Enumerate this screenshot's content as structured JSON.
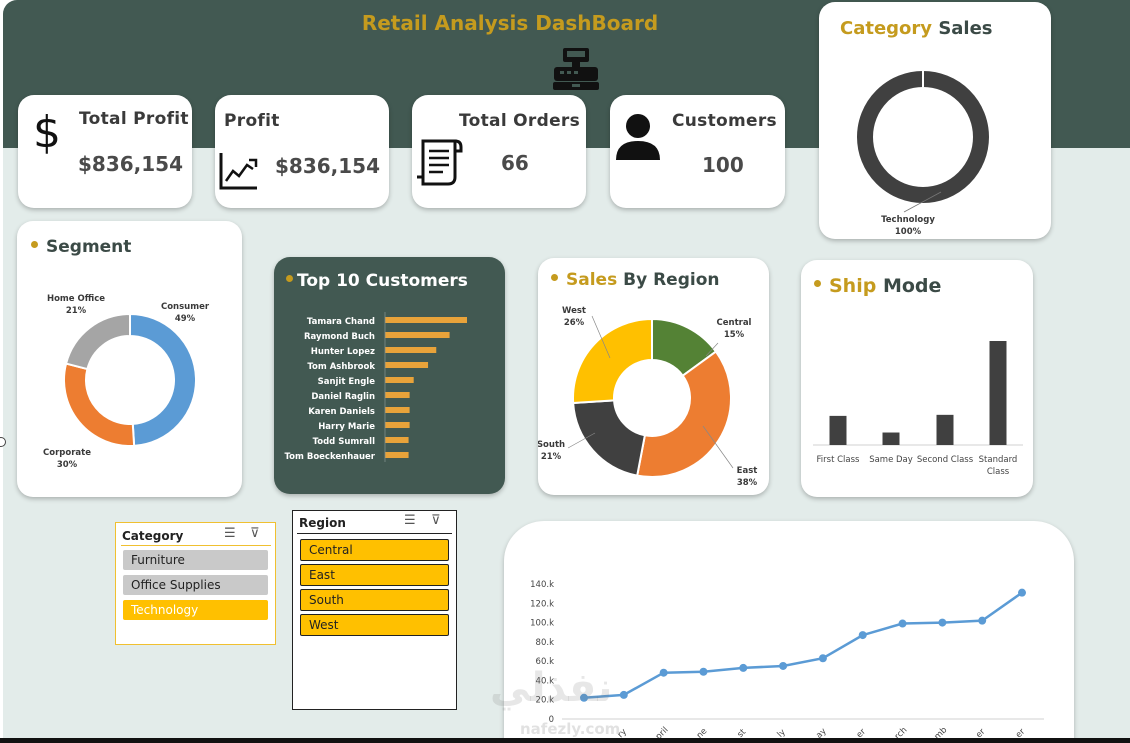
{
  "header": {
    "title": "Retail Analysis DashBoard"
  },
  "kpis": {
    "total_profit": {
      "label": "Total Profit",
      "value": "$836,154",
      "icon": "dollar-icon"
    },
    "profit": {
      "label": "Profit",
      "value": "$836,154",
      "icon": "trend-chart-icon"
    },
    "total_orders": {
      "label": "Total Orders",
      "value": "66",
      "icon": "receipt-icon"
    },
    "customers": {
      "label": "Customers",
      "value": "100",
      "icon": "person-icon"
    }
  },
  "category_sales": {
    "title_part1": "Category",
    "title_part2": "Sales",
    "label_name": "Technology",
    "label_pct": "100%"
  },
  "segment": {
    "title": "Segment",
    "slices": [
      {
        "name": "Consumer",
        "pct": "49%",
        "value": 49,
        "color": "#5b9bd5"
      },
      {
        "name": "Corporate",
        "pct": "30%",
        "value": 30,
        "color": "#ed7d31"
      },
      {
        "name": "Home Office",
        "pct": "21%",
        "value": 21,
        "color": "#a5a5a5"
      }
    ]
  },
  "top_customers": {
    "title": "Top 10 Customers",
    "bar_color": "#e8a33a",
    "names": [
      "Tamara Chand",
      "Raymond Buch",
      "Hunter Lopez",
      "Tom Ashbrook",
      "Sanjit Engle",
      "Daniel Raglin",
      "Karen Daniels",
      "Harry Marie",
      "Todd Sumrall",
      "Tom Boeckenhauer"
    ],
    "values": [
      80,
      63,
      50,
      42,
      28,
      24,
      24,
      24,
      23,
      23
    ]
  },
  "sales_by_region": {
    "title_part1": "Sales",
    "title_part2": "By Region",
    "slices": [
      {
        "name": "Central",
        "pct": "15%",
        "value": 15,
        "color": "#548235"
      },
      {
        "name": "East",
        "pct": "38%",
        "value": 38,
        "color": "#ed7d31"
      },
      {
        "name": "South",
        "pct": "21%",
        "value": 21,
        "color": "#404040"
      },
      {
        "name": "West",
        "pct": "26%",
        "value": 26,
        "color": "#ffc000"
      }
    ]
  },
  "ship_mode": {
    "title_part1": "Ship",
    "title_part2": "Mode",
    "bar_color": "#404040",
    "categories": [
      "First Class",
      "Same Day",
      "Second Class",
      "Standard Class"
    ],
    "category_lines": [
      [
        "First Class"
      ],
      [
        "Same Day"
      ],
      [
        "Second Class"
      ],
      [
        "Standard",
        "Class"
      ]
    ],
    "values": [
      28,
      12,
      29,
      100
    ]
  },
  "slicer_category": {
    "header": "Category",
    "items": [
      "Furniture",
      "Office Supplies",
      "Technology"
    ],
    "selected": "Technology"
  },
  "slicer_region": {
    "header": "Region",
    "items": [
      "Central",
      "East",
      "South",
      "West"
    ]
  },
  "chart_data": {
    "type": "line",
    "title": "",
    "xlabel": "",
    "ylabel": "",
    "ylim": [
      0,
      140
    ],
    "y_ticks": [
      "0",
      "20.k",
      "40.k",
      "60.k",
      "80.k",
      "100.k",
      "120.k",
      "140.k"
    ],
    "x_tick_labels": [
      "",
      "ry",
      "pril",
      "ne",
      "st",
      "ly",
      "ay",
      "er",
      "rch",
      "mb",
      "er",
      "er"
    ],
    "series": [
      {
        "values": [
          22,
          25,
          48,
          49,
          53,
          55,
          63,
          87,
          99,
          100,
          102,
          131
        ],
        "color": "#5b9bd5"
      }
    ]
  },
  "watermark": {
    "text": "نفذلي",
    "sub": "nafezly.com"
  }
}
